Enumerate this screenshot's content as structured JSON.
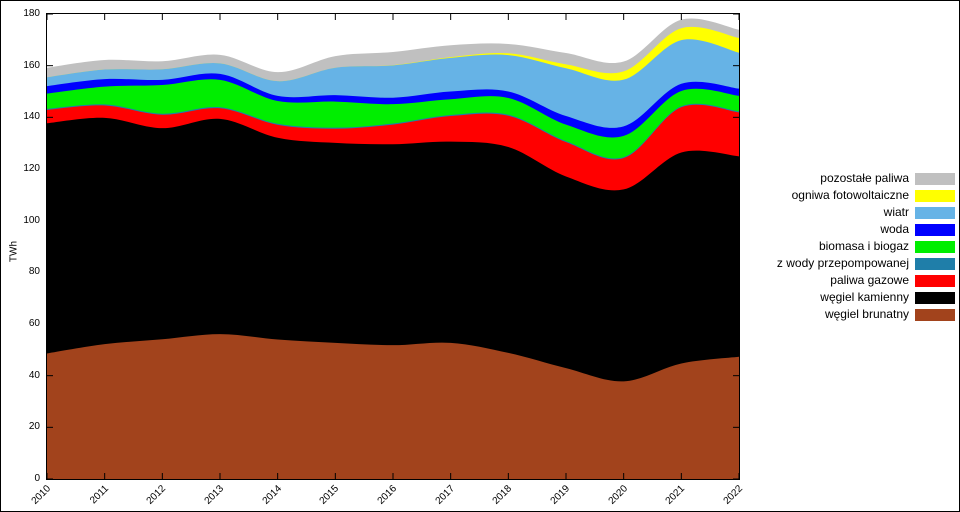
{
  "chart_data": {
    "type": "area",
    "stacked": true,
    "title": "",
    "xlabel": "",
    "ylabel": "TWh",
    "xlim": [
      2010,
      2022
    ],
    "ylim": [
      0,
      180
    ],
    "y_ticks": [
      0,
      20,
      40,
      60,
      80,
      100,
      120,
      140,
      160,
      180
    ],
    "x_ticks": [
      2010,
      2011,
      2012,
      2013,
      2014,
      2015,
      2016,
      2017,
      2018,
      2019,
      2020,
      2021,
      2022
    ],
    "grid": false,
    "legend_position": "outside-right",
    "x": [
      2010,
      2011,
      2012,
      2013,
      2014,
      2015,
      2016,
      2017,
      2018,
      2019,
      2020,
      2021,
      2022
    ],
    "series_top_to_bottom": [
      {
        "name": "pozostałe paliwa",
        "color": "#c0c0c0",
        "values": [
          3.7,
          3.7,
          3.1,
          3.3,
          3.5,
          4.5,
          5.1,
          4.6,
          3.6,
          4.4,
          3.8,
          3.3,
          3.2
        ]
      },
      {
        "name": "ogniwa fotowoltaiczne",
        "color": "#ffff00",
        "values": [
          0,
          0,
          0,
          0,
          0,
          0,
          0.1,
          0.3,
          0.7,
          1.5,
          3.2,
          4.6,
          5.7
        ]
      },
      {
        "name": "wiatr",
        "color": "#66b3e6",
        "values": [
          3.4,
          3.7,
          4.1,
          4.1,
          5.7,
          10.6,
          12.5,
          13.0,
          14.1,
          18.5,
          18.1,
          16.9,
          13.9
        ]
      },
      {
        "name": "woda",
        "color": "#0000ff",
        "values": [
          2.9,
          2.9,
          2.0,
          2.3,
          2.0,
          2.5,
          2.5,
          3.0,
          2.5,
          3.3,
          3.7,
          2.8,
          2.8
        ]
      },
      {
        "name": "biomasa i biogaz",
        "color": "#00ee00",
        "values": [
          5.9,
          6.9,
          11.1,
          10.6,
          8.8,
          10.1,
          7.5,
          6.1,
          6.5,
          6.4,
          8.2,
          5.9,
          6.0
        ]
      },
      {
        "name": "z wody przepompowanej",
        "color": "#1f7ea9",
        "values": [
          0.4,
          0.4,
          0.4,
          0.4,
          0.4,
          0.4,
          0.4,
          0.4,
          0.4,
          0.4,
          0.4,
          0.4,
          0.4
        ]
      },
      {
        "name": "paliwa gazowe",
        "color": "#ff0000",
        "values": [
          5.2,
          4.8,
          5.2,
          4.1,
          5.0,
          5.5,
          7.6,
          9.9,
          12.1,
          13.3,
          12.1,
          17.5,
          17.0
        ]
      },
      {
        "name": "węgiel kamienny",
        "color": "#000000",
        "values": [
          89.1,
          87.6,
          81.7,
          83.3,
          78.1,
          77.4,
          77.8,
          77.9,
          79.7,
          74.2,
          74.3,
          81.7,
          77.6
        ]
      },
      {
        "name": "węgiel brunatny",
        "color": "#a2431c",
        "values": [
          48.6,
          52.2,
          54.1,
          56.1,
          54.0,
          52.7,
          51.8,
          52.7,
          48.8,
          42.9,
          37.8,
          44.7,
          47.3
        ]
      }
    ]
  }
}
